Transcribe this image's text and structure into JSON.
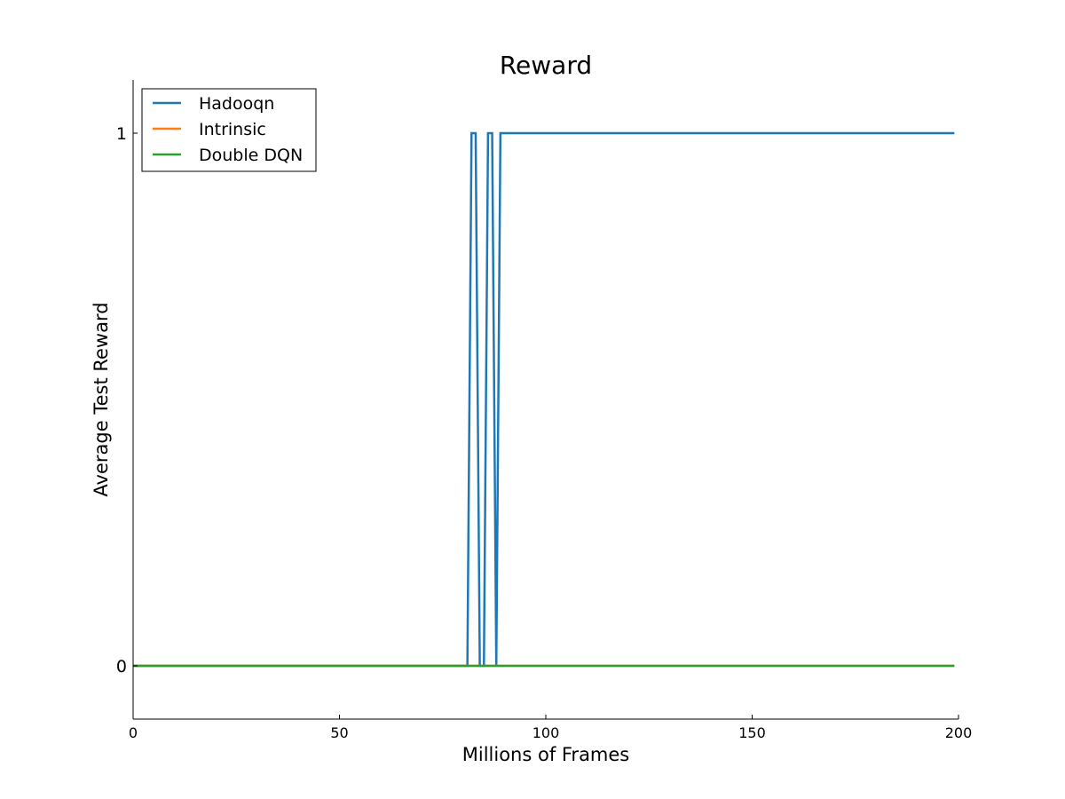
{
  "chart_data": {
    "type": "line",
    "title": "Reward",
    "xlabel": "Millions of Frames",
    "ylabel": "Average Test Reward",
    "xlim": [
      0,
      200
    ],
    "ylim": [
      -0.1,
      1.1
    ],
    "xticks": [
      0,
      50,
      100,
      150,
      200
    ],
    "xtick_labels": [
      "0",
      "50",
      "100",
      "150",
      "200"
    ],
    "yticks": [
      0,
      1
    ],
    "ytick_labels": [
      "0",
      "1"
    ],
    "grid": false,
    "legend_position": "top-left",
    "series": [
      {
        "name": "Hadooqn",
        "color": "#1f77b4",
        "x": [
          0,
          81,
          82,
          83,
          84,
          85,
          86,
          87,
          88,
          89,
          199
        ],
        "y": [
          0,
          0,
          1,
          1,
          0,
          0,
          1,
          1,
          0,
          1,
          1
        ]
      },
      {
        "name": "Intrinsic",
        "color": "#ff7f0e",
        "x": [
          0,
          199
        ],
        "y": [
          0,
          0
        ]
      },
      {
        "name": "Double DQN",
        "color": "#2ca02c",
        "x": [
          0,
          199
        ],
        "y": [
          0,
          0
        ]
      }
    ]
  }
}
